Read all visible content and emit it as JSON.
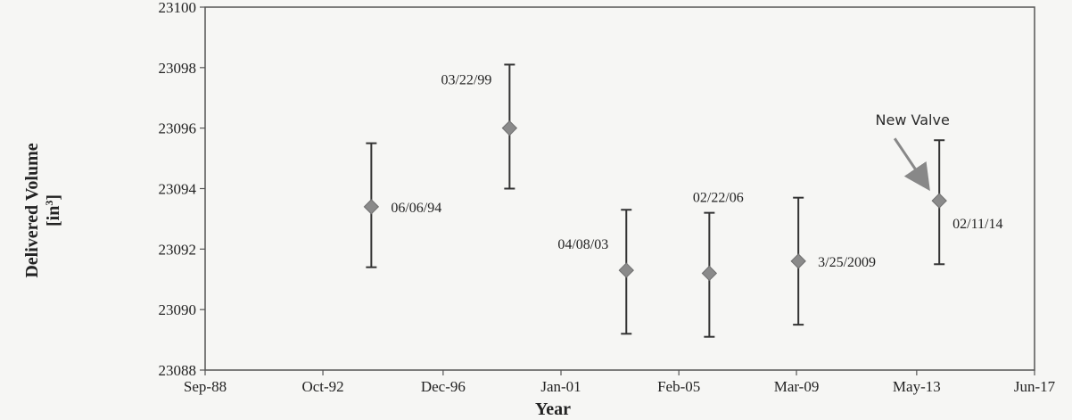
{
  "chart_data": {
    "type": "scatter",
    "title": "",
    "xlabel": "Year",
    "ylabel": {
      "line1": "Delivered Volume",
      "line2": "[in",
      "sup": "3",
      "line2_end": "]"
    },
    "ylim": [
      23088,
      23100
    ],
    "y_ticks": [
      23088,
      23090,
      23092,
      23094,
      23096,
      23098,
      23100
    ],
    "x_ticks": [
      "Sep-88",
      "Oct-92",
      "Dec-96",
      "Jan-01",
      "Feb-05",
      "Mar-09",
      "May-13",
      "Jun-17"
    ],
    "x_ticks_iso": [
      "1988-09-01",
      "1992-10-01",
      "1996-12-01",
      "2001-01-01",
      "2005-02-01",
      "2009-03-01",
      "2013-05-01",
      "2017-06-01"
    ],
    "xlim": [
      "1988-09-01",
      "2017-06-01"
    ],
    "grid": false,
    "legend": "none",
    "marker": "diamond",
    "marker_color": "#8a8a8a",
    "points": [
      {
        "label": "06/06/94",
        "date": "1994-06-06",
        "y": 23093.4,
        "err_low": 23091.4,
        "err_high": 23095.5,
        "label_side": "right"
      },
      {
        "label": "03/22/99",
        "date": "1999-03-22",
        "y": 23096.0,
        "err_low": 23094.0,
        "err_high": 23098.1,
        "label_side": "left"
      },
      {
        "label": "04/08/03",
        "date": "2003-04-08",
        "y": 23091.3,
        "err_low": 23089.2,
        "err_high": 23093.3,
        "label_side": "left"
      },
      {
        "label": "02/22/06",
        "date": "2006-02-22",
        "y": 23091.2,
        "err_low": 23089.1,
        "err_high": 23093.2,
        "label_side": "top-right"
      },
      {
        "label": "3/25/2009",
        "date": "2009-03-25",
        "y": 23091.6,
        "err_low": 23089.5,
        "err_high": 23093.7,
        "label_side": "right"
      },
      {
        "label": "02/11/14",
        "date": "2014-02-11",
        "y": 23093.6,
        "err_low": 23091.5,
        "err_high": 23095.6,
        "label_side": "right"
      }
    ],
    "annotations": [
      {
        "text": "New Valve",
        "target": "02/11/14"
      }
    ]
  }
}
